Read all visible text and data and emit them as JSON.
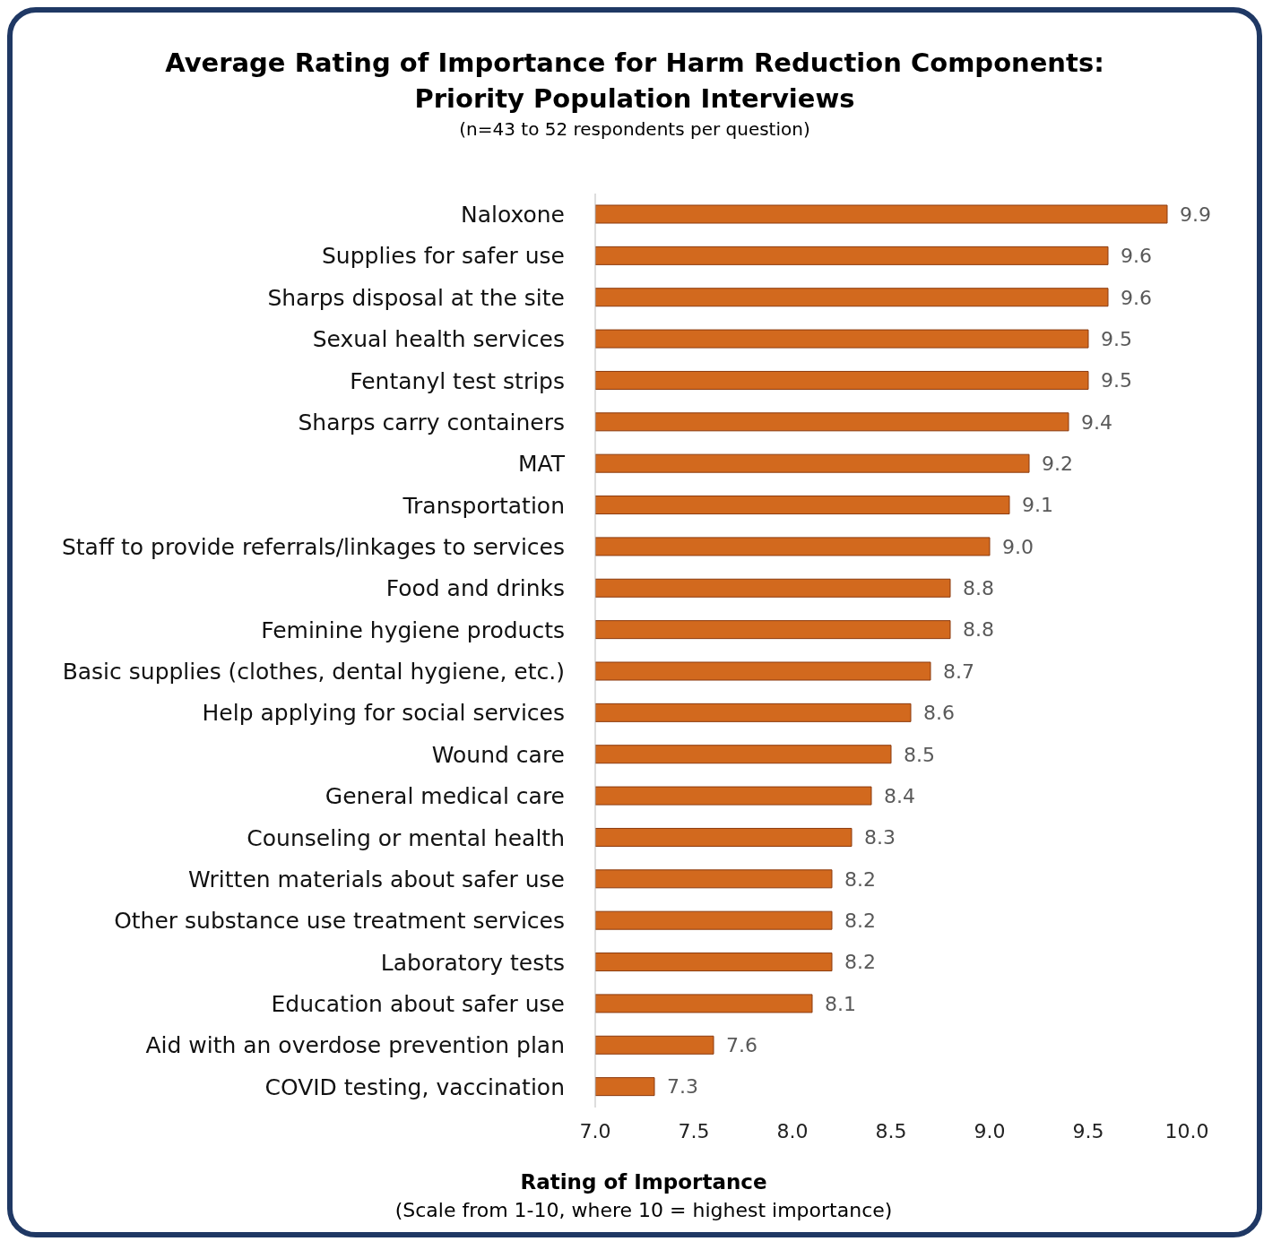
{
  "chart_data": {
    "type": "bar",
    "orientation": "horizontal",
    "title": "Average Rating of Importance for Harm Reduction Components: Priority Population Interviews",
    "subtitle": "(n=43 to 52 respondents per question)",
    "xlabel": "Rating of Importance",
    "annotations": [
      "(Scale from 1-10, where 10 = highest importance)"
    ],
    "categories": [
      "Naloxone",
      "Supplies for safer use",
      "Sharps disposal at the site",
      "Sexual health services",
      "Fentanyl test strips",
      "Sharps carry containers",
      "MAT",
      "Transportation",
      "Staff to provide referrals/linkages to services",
      "Food and drinks",
      "Feminine hygiene products",
      "Basic supplies (clothes, dental hygiene, etc.)",
      "Help applying for social services",
      "Wound care",
      "General medical care",
      "Counseling or mental health",
      "Written materials about safer use",
      "Other substance use treatment services",
      "Laboratory tests",
      "Education about safer use",
      "Aid with an overdose prevention plan",
      "COVID testing, vaccination"
    ],
    "values": [
      9.9,
      9.6,
      9.6,
      9.5,
      9.5,
      9.4,
      9.2,
      9.1,
      9.0,
      8.8,
      8.8,
      8.7,
      8.6,
      8.5,
      8.4,
      8.3,
      8.2,
      8.2,
      8.2,
      8.1,
      7.6,
      7.3
    ],
    "value_labels": [
      "9.9",
      "9.6",
      "9.6",
      "9.5",
      "9.5",
      "9.4",
      "9.2",
      "9.1",
      "9.0",
      "8.8",
      "8.8",
      "8.7",
      "8.6",
      "8.5",
      "8.4",
      "8.3",
      "8.2",
      "8.2",
      "8.2",
      "8.1",
      "7.6",
      "7.3"
    ],
    "color": "#d2691e",
    "xlim": [
      7,
      10
    ],
    "xticks": [
      {
        "value": 7,
        "label": "7.0"
      },
      {
        "value": 7.5,
        "label": "7.5"
      },
      {
        "value": 8,
        "label": "8.0"
      },
      {
        "value": 8.5,
        "label": "8.5"
      },
      {
        "value": 9,
        "label": "9.0"
      },
      {
        "value": 9.5,
        "label": "9.5"
      },
      {
        "value": 10,
        "label": "10.0"
      }
    ]
  }
}
